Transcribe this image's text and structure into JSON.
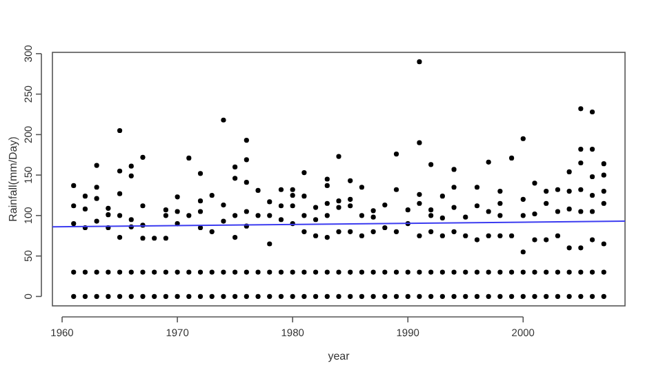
{
  "chart_data": {
    "type": "scatter",
    "xlabel": "year",
    "ylabel": "Rainfall(mm/Day)",
    "xlim": [
      1959.16,
      2008.84
    ],
    "ylim": [
      -11.6,
      301.6
    ],
    "xticks": [
      1960,
      1970,
      1980,
      1990,
      2000
    ],
    "yticks": [
      0,
      50,
      100,
      150,
      200,
      250,
      300
    ],
    "grid": false,
    "marker": "circle",
    "series": [
      {
        "color": "#000000",
        "x": [
          1961,
          1961,
          1961,
          1961,
          1961,
          1962,
          1962,
          1962,
          1962,
          1962,
          1963,
          1963,
          1963,
          1963,
          1963,
          1963,
          1964,
          1964,
          1964,
          1964,
          1964,
          1965,
          1965,
          1965,
          1965,
          1965,
          1965,
          1965,
          1966,
          1966,
          1966,
          1966,
          1966,
          1966,
          1967,
          1967,
          1967,
          1967,
          1967,
          1967,
          1968,
          1968,
          1968,
          1969,
          1969,
          1969,
          1969,
          1969,
          1970,
          1970,
          1970,
          1970,
          1970,
          1971,
          1971,
          1971,
          1971,
          1972,
          1972,
          1972,
          1972,
          1972,
          1972,
          1973,
          1973,
          1973,
          1973,
          1974,
          1974,
          1974,
          1974,
          1974,
          1975,
          1975,
          1975,
          1975,
          1975,
          1975,
          1976,
          1976,
          1976,
          1976,
          1976,
          1976,
          1976,
          1977,
          1977,
          1977,
          1977,
          1978,
          1978,
          1978,
          1978,
          1978,
          1979,
          1979,
          1979,
          1979,
          1979,
          1980,
          1980,
          1980,
          1980,
          1980,
          1980,
          1981,
          1981,
          1981,
          1981,
          1981,
          1981,
          1982,
          1982,
          1982,
          1982,
          1982,
          1983,
          1983,
          1983,
          1983,
          1983,
          1983,
          1983,
          1984,
          1984,
          1984,
          1984,
          1984,
          1984,
          1985,
          1985,
          1985,
          1985,
          1985,
          1985,
          1986,
          1986,
          1986,
          1986,
          1986,
          1987,
          1987,
          1987,
          1987,
          1987,
          1988,
          1988,
          1988,
          1988,
          1989,
          1989,
          1989,
          1989,
          1989,
          1990,
          1990,
          1990,
          1990,
          1991,
          1991,
          1991,
          1991,
          1991,
          1991,
          1991,
          1992,
          1992,
          1992,
          1992,
          1992,
          1992,
          1993,
          1993,
          1993,
          1993,
          1993,
          1994,
          1994,
          1994,
          1994,
          1994,
          1994,
          1995,
          1995,
          1995,
          1995,
          1996,
          1996,
          1996,
          1996,
          1996,
          1997,
          1997,
          1997,
          1997,
          1997,
          1998,
          1998,
          1998,
          1998,
          1998,
          1998,
          1999,
          1999,
          1999,
          1999,
          2000,
          2000,
          2000,
          2000,
          2000,
          2000,
          2001,
          2001,
          2001,
          2001,
          2001,
          2002,
          2002,
          2002,
          2002,
          2002,
          2003,
          2003,
          2003,
          2003,
          2003,
          2004,
          2004,
          2004,
          2004,
          2004,
          2004,
          2005,
          2005,
          2005,
          2005,
          2005,
          2005,
          2005,
          2005,
          2006,
          2006,
          2006,
          2006,
          2006,
          2006,
          2006,
          2006,
          2007,
          2007,
          2007,
          2007,
          2007,
          2007,
          2007
        ],
        "values": [
          0,
          30,
          90,
          112,
          137,
          0,
          30,
          85,
          108,
          124,
          0,
          30,
          93,
          121,
          135,
          162,
          0,
          30,
          85,
          101,
          109,
          0,
          30,
          73,
          100,
          127,
          155,
          205,
          0,
          30,
          86,
          95,
          149,
          161,
          0,
          30,
          72,
          88,
          112,
          172,
          0,
          30,
          72,
          0,
          30,
          72,
          100,
          107,
          0,
          30,
          90,
          105,
          123,
          0,
          30,
          100,
          171,
          0,
          30,
          85,
          105,
          118,
          152,
          0,
          30,
          80,
          125,
          0,
          30,
          93,
          113,
          218,
          0,
          30,
          73,
          100,
          146,
          160,
          0,
          30,
          87,
          105,
          141,
          169,
          193,
          0,
          30,
          100,
          131,
          0,
          30,
          65,
          100,
          117,
          0,
          30,
          95,
          112,
          132,
          0,
          30,
          90,
          112,
          125,
          132,
          0,
          30,
          80,
          100,
          124,
          153,
          0,
          30,
          75,
          95,
          110,
          0,
          30,
          73,
          100,
          115,
          137,
          145,
          0,
          30,
          80,
          110,
          118,
          173,
          0,
          30,
          80,
          112,
          120,
          143,
          0,
          30,
          75,
          100,
          135,
          0,
          30,
          80,
          98,
          106,
          0,
          30,
          85,
          113,
          0,
          30,
          80,
          132,
          176,
          0,
          30,
          90,
          107,
          0,
          30,
          75,
          115,
          126,
          190,
          290,
          0,
          30,
          80,
          100,
          107,
          163,
          0,
          30,
          75,
          97,
          124,
          0,
          30,
          80,
          110,
          135,
          157,
          0,
          30,
          75,
          98,
          0,
          30,
          70,
          112,
          135,
          0,
          30,
          75,
          105,
          166,
          0,
          30,
          75,
          100,
          115,
          130,
          0,
          30,
          75,
          171,
          0,
          30,
          55,
          100,
          120,
          195,
          0,
          30,
          70,
          102,
          140,
          0,
          30,
          70,
          115,
          130,
          0,
          30,
          75,
          105,
          132,
          0,
          30,
          60,
          108,
          130,
          154,
          0,
          30,
          60,
          105,
          132,
          165,
          182,
          232,
          0,
          30,
          70,
          105,
          125,
          148,
          182,
          228,
          0,
          30,
          65,
          115,
          130,
          150,
          164
        ]
      },
      {
        "type": "line",
        "color": "#3b3bf0",
        "marker": "none",
        "x": [
          1959.16,
          2008.84
        ],
        "values": [
          86,
          93
        ]
      }
    ]
  }
}
